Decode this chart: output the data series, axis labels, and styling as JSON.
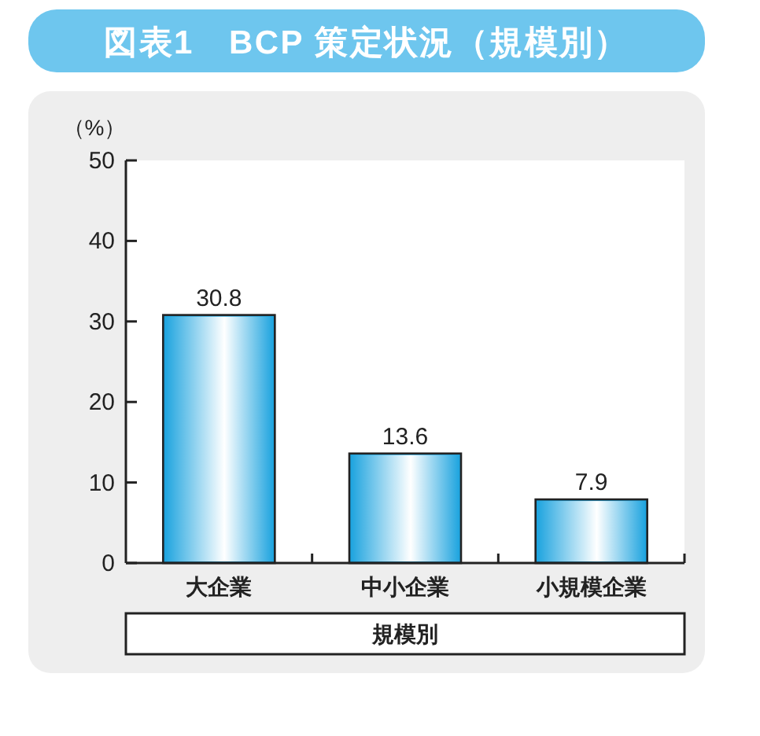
{
  "chart_data": {
    "type": "bar",
    "title": "図表1　BCP 策定状況（規模別）",
    "ylabel": "（%）",
    "xlabel": "規模別",
    "categories": [
      "大企業",
      "中小企業",
      "小規模企業"
    ],
    "values": [
      30.8,
      13.6,
      7.9
    ],
    "color": "#1ea4df",
    "ylim": [
      0,
      50
    ],
    "yticks": [
      0,
      10,
      20,
      30,
      40,
      50
    ],
    "data_labels": true
  }
}
